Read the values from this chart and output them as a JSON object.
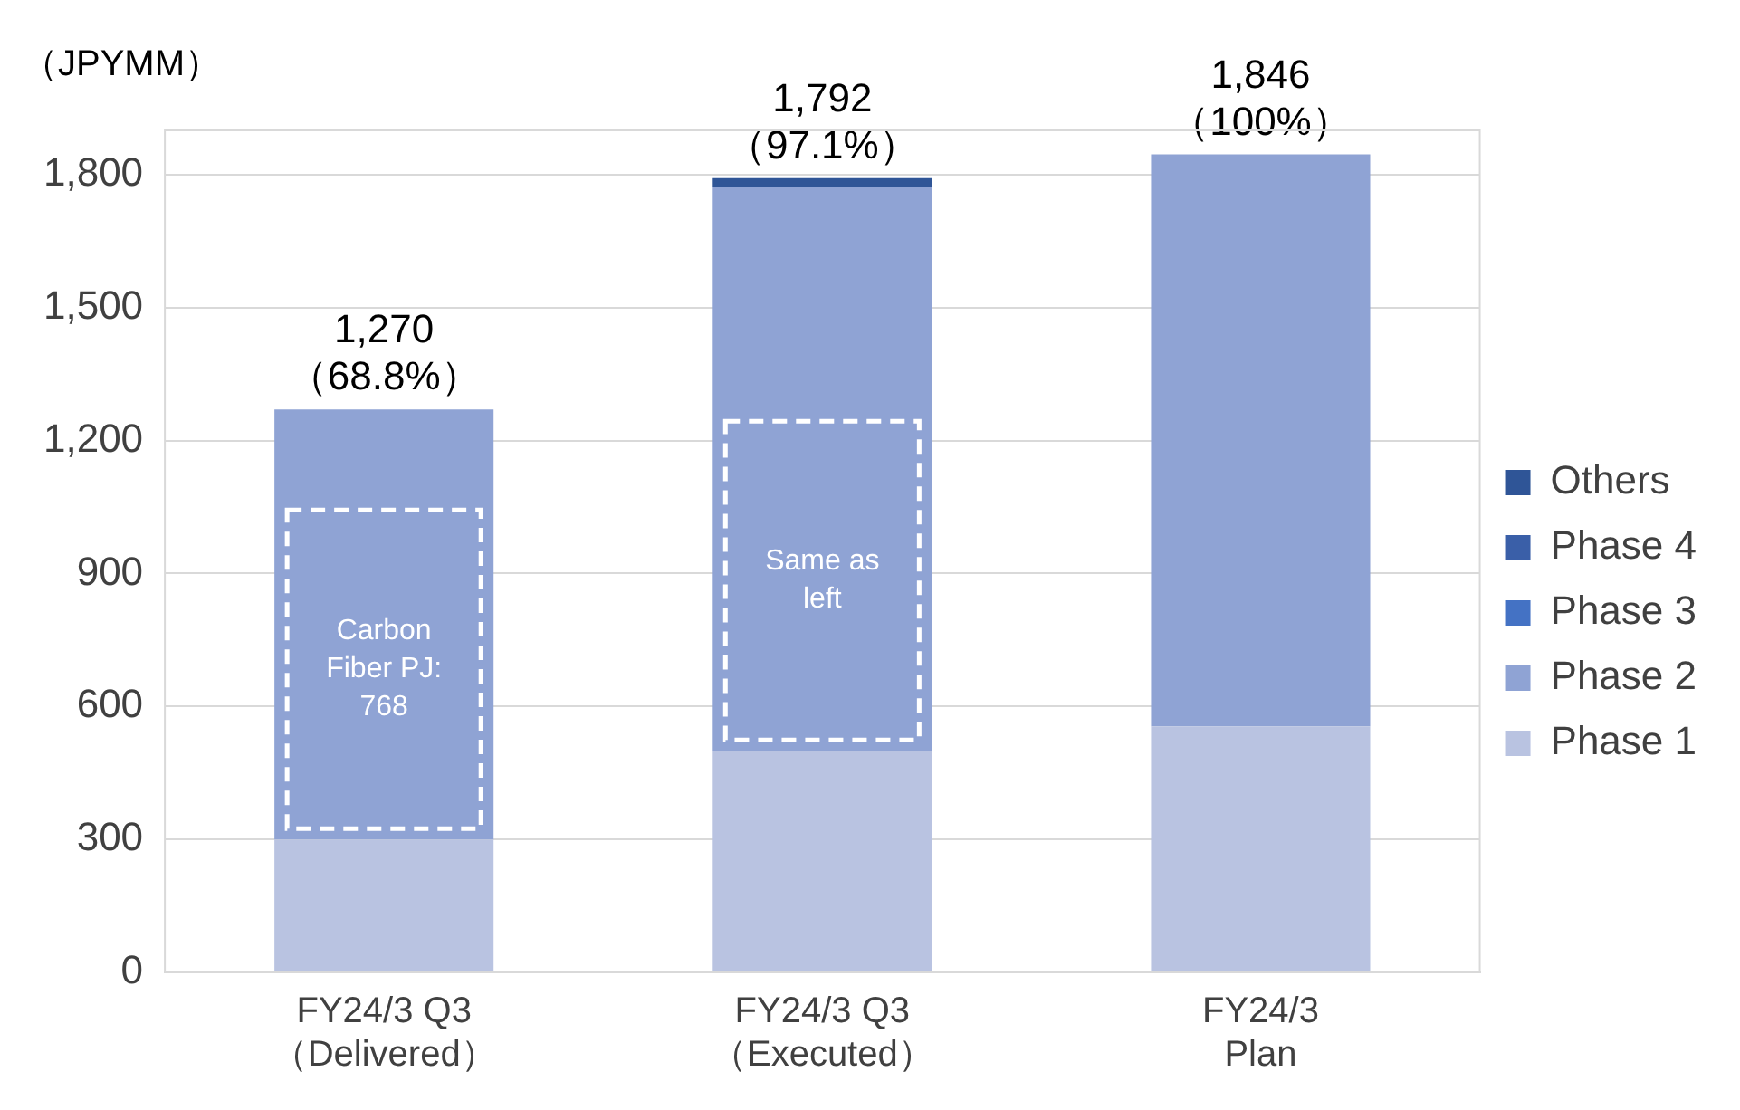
{
  "chart_data": {
    "type": "bar",
    "stacked": true,
    "ylabel": "（JPYMM）",
    "categories": [
      "FY24/3 Q3\n（Delivered）",
      "FY24/3 Q3\n（Executed）",
      "FY24/3\nPlan"
    ],
    "series": [
      {
        "name": "Phase 1",
        "color": "#b9c3e1",
        "values": [
          300,
          500,
          555
        ]
      },
      {
        "name": "Phase 2",
        "color": "#8fa3d4",
        "values": [
          970,
          1272,
          1291
        ]
      },
      {
        "name": "Phase 3",
        "color": "#4472c4",
        "values": [
          0,
          0,
          0
        ]
      },
      {
        "name": "Phase 4",
        "color": "#3a5fa8",
        "values": [
          0,
          0,
          0
        ]
      },
      {
        "name": "Others",
        "color": "#2f5597",
        "values": [
          0,
          20,
          0
        ]
      }
    ],
    "totals": [
      "1,270\n（68.8%）",
      "1,792\n（97.1%）",
      "1,846\n（100%）"
    ],
    "annotations": [
      "Carbon\nFiber PJ:\n768",
      "Same as\nleft"
    ],
    "ylim": [
      0,
      1900
    ],
    "yticks": [
      0,
      300,
      600,
      900,
      {
        "value": 1200,
        "label": "1,200"
      },
      {
        "value": 1500,
        "label": "1,500"
      },
      {
        "value": 1800,
        "label": "1,800"
      }
    ],
    "grid": "y",
    "legend": "right"
  }
}
